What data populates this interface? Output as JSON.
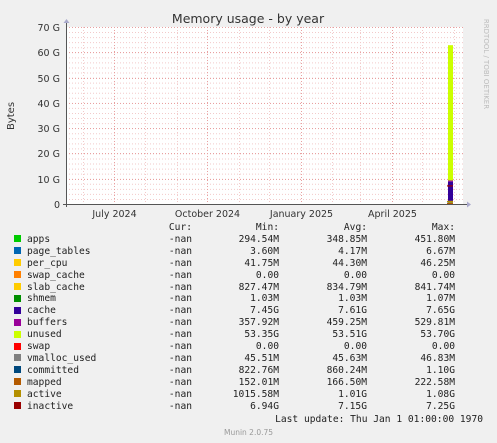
{
  "chart_data": {
    "type": "area",
    "title": "Memory usage - by year",
    "ylabel": "Bytes",
    "side_label": "RRDTOOL / TOBI OETIKER",
    "ylim": [
      0,
      70000000000
    ],
    "yticks": [
      {
        "value": 0,
        "label": "0"
      },
      {
        "value": 10000000000,
        "label": "10 G"
      },
      {
        "value": 20000000000,
        "label": "20 G"
      },
      {
        "value": 30000000000,
        "label": "30 G"
      },
      {
        "value": 40000000000,
        "label": "40 G"
      },
      {
        "value": 50000000000,
        "label": "50 G"
      },
      {
        "value": 60000000000,
        "label": "60 G"
      },
      {
        "value": 70000000000,
        "label": "70 G"
      }
    ],
    "xlim": [
      "2024-05-15",
      "2025-06-10"
    ],
    "xticks": [
      {
        "date": "2024-07-01",
        "label": "July 2024"
      },
      {
        "date": "2024-10-01",
        "label": "October 2024"
      },
      {
        "date": "2025-01-01",
        "label": "January 2025"
      },
      {
        "date": "2025-04-01",
        "label": "April 2025"
      }
    ],
    "grid": true,
    "data_start": "2025-05-26",
    "data_end": "2025-05-31",
    "stack": [
      {
        "name": "apps",
        "color": "#00cc00",
        "value": 348850000
      },
      {
        "name": "page_tables",
        "color": "#0066b3",
        "value": 4170000
      },
      {
        "name": "per_cpu",
        "color": "#ffcc00",
        "value": 44300000
      },
      {
        "name": "swap_cache",
        "color": "#ff8000",
        "value": 0
      },
      {
        "name": "slab_cache",
        "color": "#ffcc00",
        "value": 834790000
      },
      {
        "name": "cache",
        "color": "#330099",
        "value": 7610000000
      },
      {
        "name": "buffers",
        "color": "#990099",
        "value": 459250000
      },
      {
        "name": "unused",
        "color": "#ccff00",
        "value": 53510000000
      },
      {
        "name": "swap",
        "color": "#ff0000",
        "value": 0
      }
    ],
    "lines": [
      {
        "name": "vmalloc_used",
        "color": "#808080",
        "value": 45630000
      },
      {
        "name": "committed",
        "color": "#00487d",
        "value": 860240000
      },
      {
        "name": "mapped",
        "color": "#b35a00",
        "value": 166500000
      },
      {
        "name": "active",
        "color": "#b38f00",
        "value": 1010000000
      },
      {
        "name": "inactive",
        "color": "#990000",
        "value": 7150000000
      }
    ]
  },
  "legend": {
    "headers": {
      "cur": "Cur:",
      "min": "Min:",
      "avg": "Avg:",
      "max": "Max:"
    },
    "rows": [
      {
        "name": "apps",
        "color": "#00cc00",
        "cur": "-nan",
        "min": "294.54M",
        "avg": "348.85M",
        "max": "451.80M"
      },
      {
        "name": "page_tables",
        "color": "#0066b3",
        "cur": "-nan",
        "min": "3.60M",
        "avg": "4.17M",
        "max": "6.67M"
      },
      {
        "name": "per_cpu",
        "color": "#ffcc00",
        "cur": "-nan",
        "min": "41.75M",
        "avg": "44.30M",
        "max": "46.25M"
      },
      {
        "name": "swap_cache",
        "color": "#ff8000",
        "cur": "-nan",
        "min": "0.00",
        "avg": "0.00",
        "max": "0.00"
      },
      {
        "name": "slab_cache",
        "color": "#ffcc00",
        "cur": "-nan",
        "min": "827.47M",
        "avg": "834.79M",
        "max": "841.74M"
      },
      {
        "name": "shmem",
        "color": "#008f00",
        "cur": "-nan",
        "min": "1.03M",
        "avg": "1.03M",
        "max": "1.07M"
      },
      {
        "name": "cache",
        "color": "#330099",
        "cur": "-nan",
        "min": "7.45G",
        "avg": "7.61G",
        "max": "7.65G"
      },
      {
        "name": "buffers",
        "color": "#990099",
        "cur": "-nan",
        "min": "357.92M",
        "avg": "459.25M",
        "max": "529.81M"
      },
      {
        "name": "unused",
        "color": "#ccff00",
        "cur": "-nan",
        "min": "53.35G",
        "avg": "53.51G",
        "max": "53.70G"
      },
      {
        "name": "swap",
        "color": "#ff0000",
        "cur": "-nan",
        "min": "0.00",
        "avg": "0.00",
        "max": "0.00"
      },
      {
        "name": "vmalloc_used",
        "color": "#808080",
        "cur": "-nan",
        "min": "45.51M",
        "avg": "45.63M",
        "max": "46.83M"
      },
      {
        "name": "committed",
        "color": "#00487d",
        "cur": "-nan",
        "min": "822.76M",
        "avg": "860.24M",
        "max": "1.10G"
      },
      {
        "name": "mapped",
        "color": "#b35a00",
        "cur": "-nan",
        "min": "152.01M",
        "avg": "166.50M",
        "max": "222.58M"
      },
      {
        "name": "active",
        "color": "#b38f00",
        "cur": "-nan",
        "min": "1015.58M",
        "avg": "1.01G",
        "max": "1.08G"
      },
      {
        "name": "inactive",
        "color": "#990000",
        "cur": "-nan",
        "min": "6.94G",
        "avg": "7.15G",
        "max": "7.25G"
      }
    ]
  },
  "last_update": "Last update: Thu Jan  1 01:00:00 1970",
  "footer": "Munin 2.0.75"
}
